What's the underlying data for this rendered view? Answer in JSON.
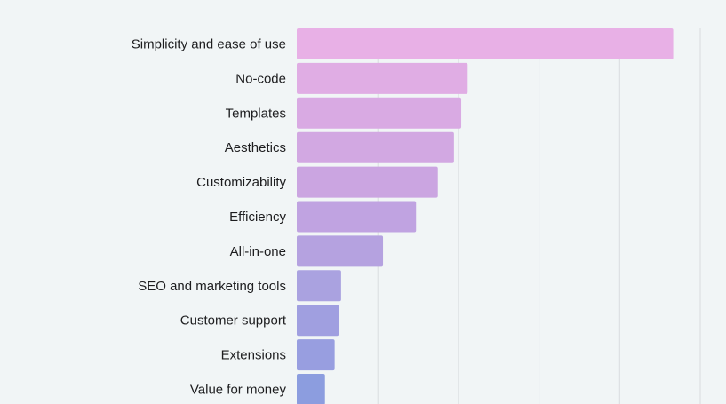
{
  "chart_data": {
    "type": "bar",
    "orientation": "horizontal",
    "title": "",
    "xlabel": "",
    "ylabel": "",
    "categories": [
      "Simplicity and ease of use",
      "No-code",
      "Templates",
      "Aesthetics",
      "Customizability",
      "Efficiency",
      "All-in-one",
      "SEO and marketing tools",
      "Customer support",
      "Extensions",
      "Value for money"
    ],
    "values": [
      4.67,
      2.12,
      2.04,
      1.95,
      1.75,
      1.48,
      1.07,
      0.55,
      0.52,
      0.47,
      0.35
    ],
    "xlim": [
      0,
      5
    ],
    "grid": true,
    "grid_ticks": [
      1,
      2,
      3,
      4,
      5
    ],
    "tick_labels_visible": false,
    "legend": "none",
    "bar_colors": [
      "#e8b0e6",
      "#e0ade4",
      "#d9aae3",
      "#d2a8e2",
      "#cba5e1",
      "#c0a3e1",
      "#b5a2e0",
      "#aaa2e0",
      "#a09fe0",
      "#989ee0",
      "#8c9ddf"
    ]
  }
}
